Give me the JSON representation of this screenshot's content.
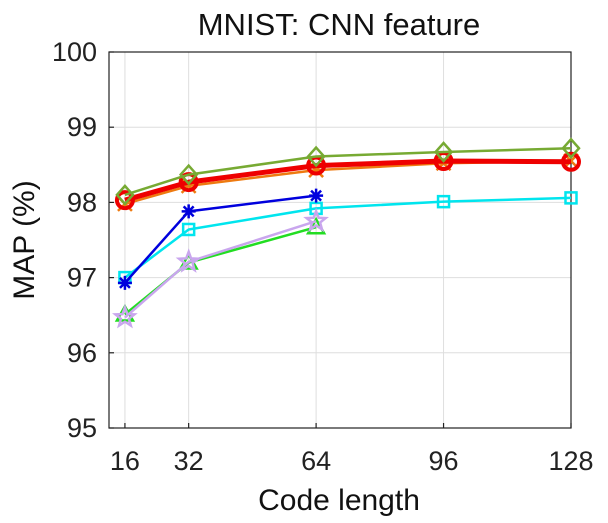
{
  "chart_data": {
    "type": "line",
    "title": "MNIST: CNN feature",
    "xlabel": "Code length",
    "ylabel": "MAP (%)",
    "x_ticks": [
      16,
      32,
      64,
      96,
      128
    ],
    "y_ticks": [
      95,
      96,
      97,
      98,
      99,
      100
    ],
    "xlim": [
      12,
      128
    ],
    "ylim": [
      95,
      100
    ],
    "grid": true,
    "series": [
      {
        "marker": "square",
        "color": "#00e5ee",
        "width": 2.5,
        "x": [
          16,
          32,
          64,
          96,
          128
        ],
        "y": [
          97.0,
          97.64,
          97.92,
          98.01,
          98.06
        ]
      },
      {
        "marker": "asterisk",
        "color": "#0000dd",
        "width": 2.5,
        "x": [
          16,
          32,
          64
        ],
        "y": [
          96.93,
          97.88,
          98.09
        ]
      },
      {
        "marker": "triangle",
        "color": "#22dd22",
        "width": 2.5,
        "x": [
          16,
          32,
          64
        ],
        "y": [
          96.51,
          97.2,
          97.67
        ]
      },
      {
        "marker": "star",
        "color": "#c9a6ee",
        "width": 2.5,
        "x": [
          16,
          32,
          64
        ],
        "y": [
          96.47,
          97.21,
          97.75
        ]
      },
      {
        "marker": "x",
        "color": "#ee7a10",
        "width": 2.5,
        "x": [
          16,
          32,
          64,
          96,
          128
        ],
        "y": [
          97.98,
          98.22,
          98.43,
          98.52,
          98.55
        ]
      },
      {
        "marker": "circle",
        "color": "#ee0000",
        "width": 5,
        "x": [
          16,
          32,
          64,
          96,
          128
        ],
        "y": [
          98.03,
          98.27,
          98.49,
          98.55,
          98.54
        ]
      },
      {
        "marker": "diamond",
        "color": "#77aa33",
        "width": 2.5,
        "x": [
          16,
          32,
          64,
          96,
          128
        ],
        "y": [
          98.1,
          98.37,
          98.61,
          98.67,
          98.72
        ]
      }
    ]
  }
}
